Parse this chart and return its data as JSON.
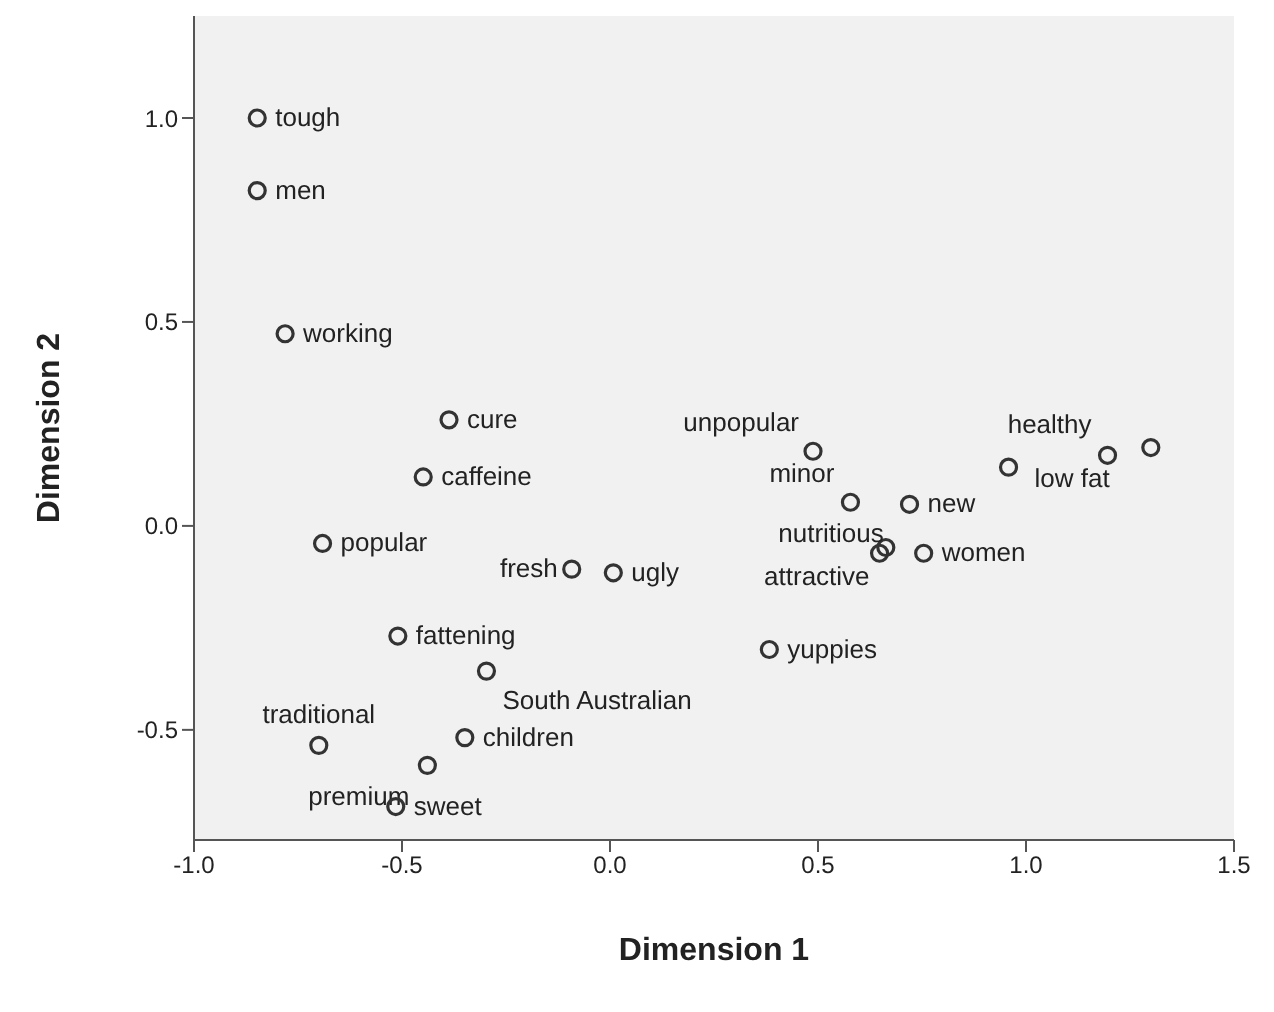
{
  "chart_data": {
    "type": "scatter",
    "xlabel": "Dimension 1",
    "ylabel": "Dimension 2",
    "x": [
      -0.848,
      -0.848,
      -0.781,
      -0.387,
      -0.449,
      -0.691,
      -0.092,
      0.008,
      -0.51,
      -0.297,
      -0.349,
      -0.7,
      -0.439,
      -0.515,
      0.383,
      0.488,
      0.578,
      0.72,
      0.663,
      0.648,
      0.754,
      0.958,
      1.196,
      1.3
    ],
    "values": [
      1.0,
      0.822,
      0.471,
      0.26,
      0.12,
      -0.043,
      -0.106,
      -0.115,
      -0.27,
      -0.356,
      -0.519,
      -0.538,
      -0.587,
      -0.688,
      -0.303,
      0.183,
      0.058,
      0.053,
      -0.053,
      -0.067,
      -0.067,
      0.144,
      0.173,
      0.192
    ],
    "value_labels": [
      "tough",
      "men",
      "working",
      "cure",
      "caffeine",
      "popular",
      "fresh",
      "ugly",
      "fattening",
      "South Australian",
      "children",
      "traditional",
      "premium",
      "sweet",
      "yuppies",
      "unpopular",
      "minor",
      "new",
      "nutritious",
      "attractive",
      "women",
      "low fat",
      "healthy",
      null
    ],
    "color": "#333333",
    "marker": "circle",
    "xlim": [
      -1.0,
      1.5
    ],
    "xticks": [
      {
        "value": -1.0,
        "label": "-1.0"
      },
      {
        "value": -0.5,
        "label": "-0.5"
      },
      {
        "value": 0.0,
        "label": "0.0"
      },
      {
        "value": 0.5,
        "label": "0.5"
      },
      {
        "value": 1.0,
        "label": "1.0"
      },
      {
        "value": 1.5,
        "label": "1.5"
      }
    ],
    "ylim": [
      -0.77,
      1.25
    ],
    "yticks": [
      {
        "value": -0.5,
        "label": "-0.5"
      },
      {
        "value": 0.0,
        "label": "0.0"
      },
      {
        "value": 0.5,
        "label": "0.5"
      },
      {
        "value": 1.0,
        "label": "1.0"
      }
    ],
    "grid": false,
    "legend": false
  }
}
